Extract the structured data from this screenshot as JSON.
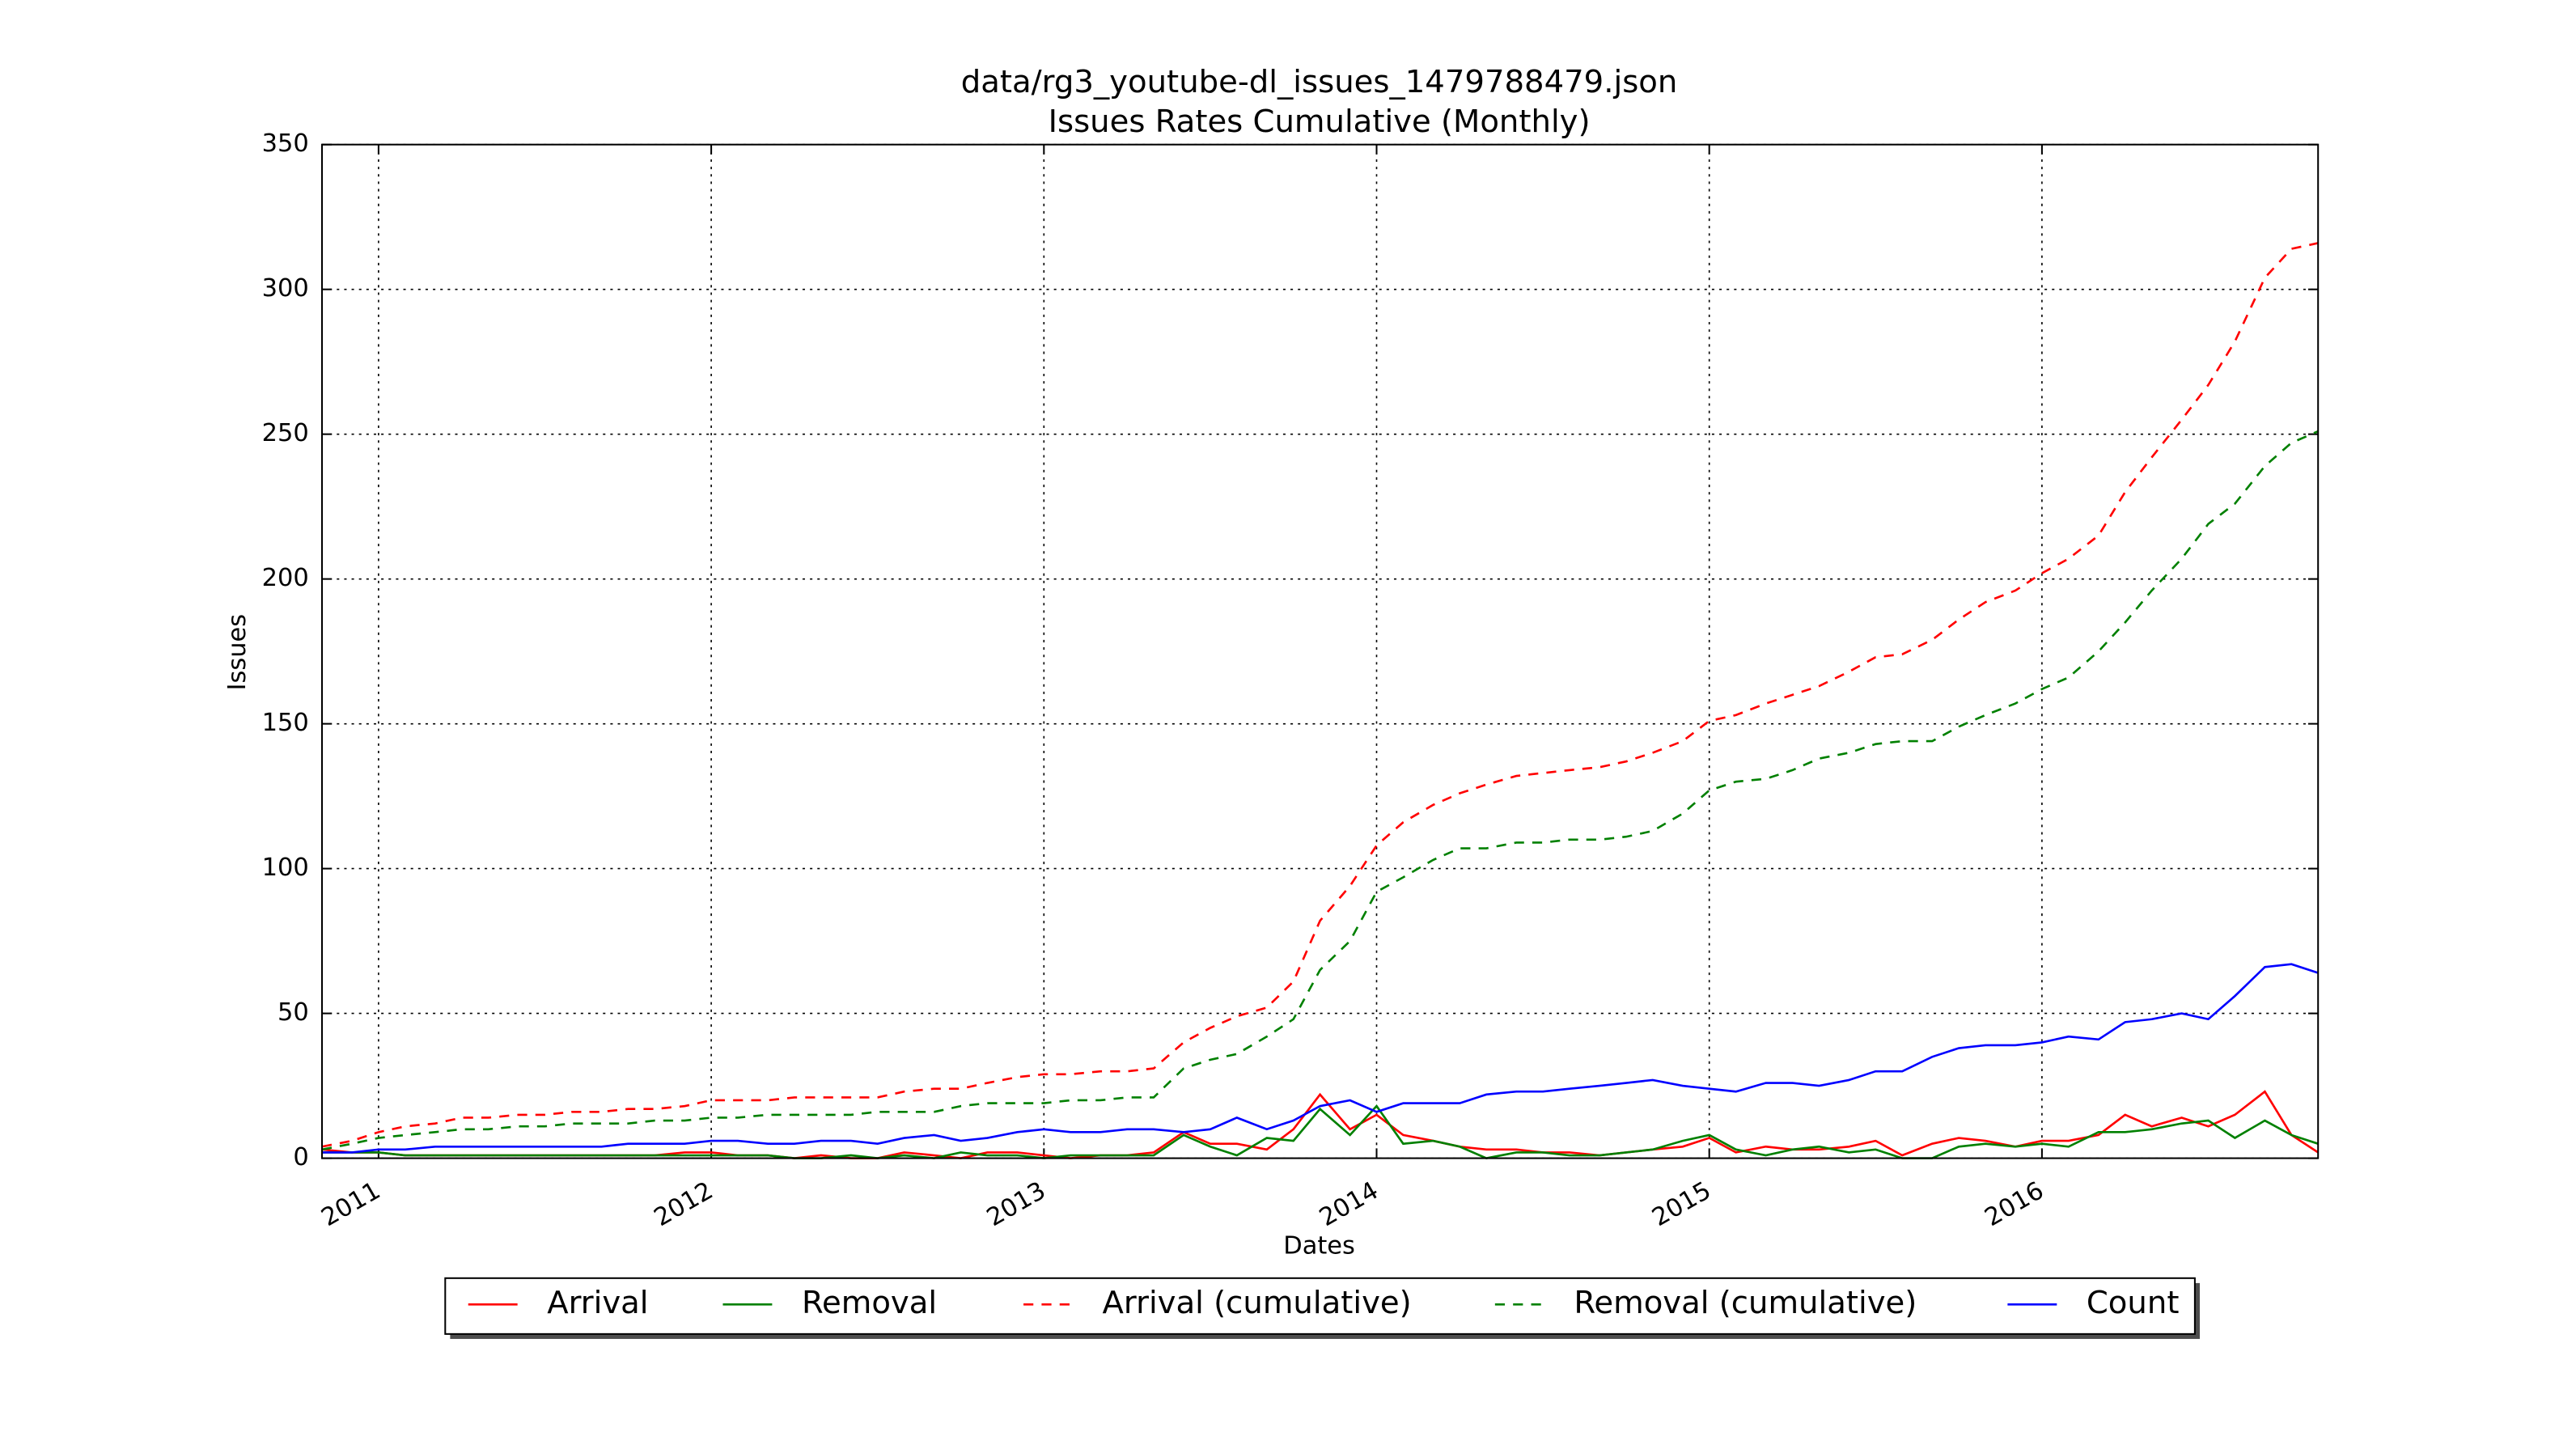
{
  "chart_data": {
    "type": "line",
    "title": "data/rg3_youtube-dl_issues_1479788479.json",
    "subtitle": "Issues Rates Cumulative (Monthly)",
    "x_label": "Dates",
    "y_label": "Issues",
    "x": [
      2010.83,
      2010.92,
      2011.0,
      2011.08,
      2011.17,
      2011.25,
      2011.33,
      2011.42,
      2011.5,
      2011.58,
      2011.67,
      2011.75,
      2011.83,
      2011.92,
      2012.0,
      2012.08,
      2012.17,
      2012.25,
      2012.33,
      2012.42,
      2012.5,
      2012.58,
      2012.67,
      2012.75,
      2012.83,
      2012.92,
      2013.0,
      2013.08,
      2013.17,
      2013.25,
      2013.33,
      2013.42,
      2013.5,
      2013.58,
      2013.67,
      2013.75,
      2013.83,
      2013.92,
      2014.0,
      2014.08,
      2014.17,
      2014.25,
      2014.33,
      2014.42,
      2014.5,
      2014.58,
      2014.67,
      2014.75,
      2014.83,
      2014.92,
      2015.0,
      2015.08,
      2015.17,
      2015.25,
      2015.33,
      2015.42,
      2015.5,
      2015.58,
      2015.67,
      2015.75,
      2015.83,
      2015.92,
      2016.0,
      2016.08,
      2016.17,
      2016.25,
      2016.33,
      2016.42,
      2016.5,
      2016.58,
      2016.67,
      2016.75,
      2016.83
    ],
    "xlim": [
      2010.83,
      2016.83
    ],
    "xticks": [
      2011,
      2012,
      2013,
      2014,
      2015,
      2016
    ],
    "ylim": [
      0,
      350
    ],
    "yticks": [
      0,
      50,
      100,
      150,
      200,
      250,
      300,
      350
    ],
    "grid": true,
    "legend": "below",
    "series": [
      {
        "name": "Arrival",
        "color": "#ff0000",
        "linestyle": "solid",
        "values": [
          3,
          2,
          2,
          1,
          1,
          1,
          1,
          1,
          1,
          1,
          1,
          1,
          1,
          2,
          2,
          1,
          1,
          0,
          1,
          0,
          0,
          2,
          1,
          0,
          2,
          2,
          1,
          0,
          1,
          1,
          2,
          9,
          5,
          5,
          3,
          10,
          22,
          10,
          15,
          8,
          6,
          4,
          3,
          3,
          2,
          2,
          1,
          2,
          3,
          4,
          7,
          2,
          4,
          3,
          3,
          4,
          6,
          1,
          5,
          7,
          6,
          4,
          6,
          6,
          8,
          15,
          11,
          14,
          11,
          15,
          23,
          8,
          2
        ]
      },
      {
        "name": "Removal",
        "color": "#008000",
        "linestyle": "solid",
        "values": [
          2,
          2,
          2,
          1,
          1,
          1,
          1,
          1,
          1,
          1,
          1,
          1,
          1,
          1,
          1,
          1,
          1,
          0,
          0,
          1,
          0,
          1,
          0,
          2,
          1,
          1,
          0,
          1,
          1,
          1,
          1,
          8,
          4,
          1,
          7,
          6,
          17,
          8,
          18,
          5,
          6,
          4,
          0,
          2,
          2,
          1,
          1,
          2,
          3,
          6,
          8,
          3,
          1,
          3,
          4,
          2,
          3,
          0,
          0,
          4,
          5,
          4,
          5,
          4,
          9,
          9,
          10,
          12,
          13,
          7,
          13,
          8,
          5
        ]
      },
      {
        "name": "Arrival (cumulative)",
        "color": "#ff0000",
        "linestyle": "dashed",
        "values": [
          4,
          6,
          9,
          11,
          12,
          14,
          14,
          15,
          15,
          16,
          16,
          17,
          17,
          18,
          20,
          20,
          20,
          21,
          21,
          21,
          21,
          23,
          24,
          24,
          26,
          28,
          29,
          29,
          30,
          30,
          31,
          40,
          45,
          49,
          52,
          61,
          82,
          94,
          108,
          116,
          122,
          126,
          129,
          132,
          133,
          134,
          135,
          137,
          140,
          144,
          151,
          153,
          157,
          160,
          163,
          168,
          173,
          174,
          179,
          186,
          192,
          196,
          202,
          207,
          215,
          230,
          242,
          255,
          267,
          282,
          304,
          314,
          316
        ]
      },
      {
        "name": "Removal (cumulative)",
        "color": "#008000",
        "linestyle": "dashed",
        "values": [
          3,
          5,
          7,
          8,
          9,
          10,
          10,
          11,
          11,
          12,
          12,
          12,
          13,
          13,
          14,
          14,
          15,
          15,
          15,
          15,
          16,
          16,
          16,
          18,
          19,
          19,
          19,
          20,
          20,
          21,
          21,
          31,
          34,
          36,
          42,
          48,
          65,
          75,
          92,
          97,
          103,
          107,
          107,
          109,
          109,
          110,
          110,
          111,
          113,
          119,
          127,
          130,
          131,
          134,
          138,
          140,
          143,
          144,
          144,
          149,
          153,
          157,
          162,
          166,
          175,
          185,
          196,
          207,
          219,
          226,
          239,
          247,
          251
        ]
      },
      {
        "name": "Count",
        "color": "#0000ff",
        "linestyle": "solid",
        "values": [
          2,
          2,
          3,
          3,
          4,
          4,
          4,
          4,
          4,
          4,
          4,
          5,
          5,
          5,
          6,
          6,
          5,
          5,
          6,
          6,
          5,
          7,
          8,
          6,
          7,
          9,
          10,
          9,
          9,
          10,
          10,
          9,
          10,
          14,
          10,
          13,
          18,
          20,
          16,
          19,
          19,
          19,
          22,
          23,
          23,
          24,
          25,
          26,
          27,
          25,
          24,
          23,
          26,
          26,
          25,
          27,
          30,
          30,
          35,
          38,
          39,
          39,
          40,
          42,
          41,
          47,
          48,
          50,
          48,
          56,
          66,
          67,
          64
        ]
      }
    ]
  }
}
